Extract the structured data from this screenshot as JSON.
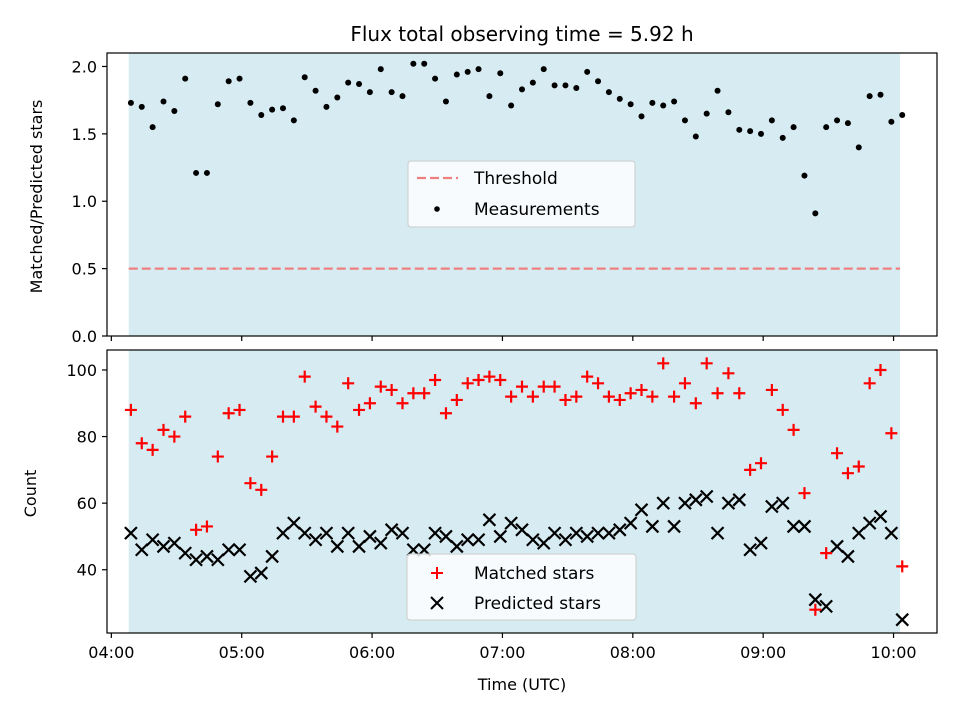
{
  "title": "Flux total observing time = 5.92 h",
  "colors": {
    "band": "#add8e6",
    "threshold": "#f08080",
    "measurement": "#000000",
    "matched": "#ff0000",
    "predicted": "#000000"
  },
  "chart_data": [
    {
      "type": "scatter",
      "panel": "top",
      "xlabel": "",
      "ylabel": "Matched/Predicted stars",
      "ylim": [
        0,
        2.1
      ],
      "yticks": [
        "0.0",
        "0.5",
        "1.0",
        "1.5",
        "2.0"
      ],
      "xlim": [
        "03:58",
        "10:20"
      ],
      "shaded_span": [
        "04:08",
        "10:03"
      ],
      "threshold": 0.5,
      "legend": {
        "placement": "center",
        "entries": [
          "Threshold",
          "Measurements"
        ]
      },
      "series": [
        {
          "name": "Measurements",
          "marker": "dot",
          "points": [
            [
              "04:09",
              1.73
            ],
            [
              "04:14",
              1.7
            ],
            [
              "04:19",
              1.55
            ],
            [
              "04:24",
              1.74
            ],
            [
              "04:29",
              1.67
            ],
            [
              "04:34",
              1.91
            ],
            [
              "04:39",
              1.21
            ],
            [
              "04:44",
              1.21
            ],
            [
              "04:49",
              1.72
            ],
            [
              "04:54",
              1.89
            ],
            [
              "04:59",
              1.91
            ],
            [
              "05:04",
              1.73
            ],
            [
              "05:09",
              1.64
            ],
            [
              "05:14",
              1.68
            ],
            [
              "05:19",
              1.69
            ],
            [
              "05:24",
              1.6
            ],
            [
              "05:29",
              1.92
            ],
            [
              "05:34",
              1.82
            ],
            [
              "05:39",
              1.7
            ],
            [
              "05:44",
              1.77
            ],
            [
              "05:49",
              1.88
            ],
            [
              "05:54",
              1.87
            ],
            [
              "05:59",
              1.81
            ],
            [
              "06:04",
              1.98
            ],
            [
              "06:09",
              1.81
            ],
            [
              "06:14",
              1.78
            ],
            [
              "06:19",
              2.02
            ],
            [
              "06:24",
              2.02
            ],
            [
              "06:29",
              1.91
            ],
            [
              "06:34",
              1.74
            ],
            [
              "06:39",
              1.94
            ],
            [
              "06:44",
              1.96
            ],
            [
              "06:49",
              1.98
            ],
            [
              "06:54",
              1.78
            ],
            [
              "06:59",
              1.95
            ],
            [
              "07:04",
              1.71
            ],
            [
              "07:09",
              1.83
            ],
            [
              "07:14",
              1.88
            ],
            [
              "07:19",
              1.98
            ],
            [
              "07:24",
              1.86
            ],
            [
              "07:29",
              1.86
            ],
            [
              "07:34",
              1.84
            ],
            [
              "07:39",
              1.96
            ],
            [
              "07:44",
              1.89
            ],
            [
              "07:49",
              1.81
            ],
            [
              "07:54",
              1.76
            ],
            [
              "07:59",
              1.72
            ],
            [
              "08:04",
              1.63
            ],
            [
              "08:09",
              1.73
            ],
            [
              "08:14",
              1.71
            ],
            [
              "08:19",
              1.74
            ],
            [
              "08:24",
              1.6
            ],
            [
              "08:29",
              1.48
            ],
            [
              "08:34",
              1.65
            ],
            [
              "08:39",
              1.82
            ],
            [
              "08:44",
              1.66
            ],
            [
              "08:49",
              1.53
            ],
            [
              "08:54",
              1.52
            ],
            [
              "08:59",
              1.5
            ],
            [
              "09:04",
              1.6
            ],
            [
              "09:09",
              1.47
            ],
            [
              "09:14",
              1.55
            ],
            [
              "09:19",
              1.19
            ],
            [
              "09:24",
              0.91
            ],
            [
              "09:29",
              1.55
            ],
            [
              "09:34",
              1.6
            ],
            [
              "09:39",
              1.58
            ],
            [
              "09:44",
              1.4
            ],
            [
              "09:49",
              1.78
            ],
            [
              "09:54",
              1.79
            ],
            [
              "09:59",
              1.59
            ],
            [
              "10:04",
              1.64
            ]
          ]
        }
      ]
    },
    {
      "type": "scatter",
      "panel": "bottom",
      "xlabel": "Time (UTC)",
      "ylabel": "Count",
      "ylim": [
        21,
        106
      ],
      "yticks": [
        "40",
        "60",
        "80",
        "100"
      ],
      "xlim": [
        "03:58",
        "10:20"
      ],
      "xticks": [
        "04:00",
        "05:00",
        "06:00",
        "07:00",
        "08:00",
        "09:00",
        "10:00"
      ],
      "shaded_span": [
        "04:08",
        "10:03"
      ],
      "legend": {
        "placement": "bottom-center",
        "entries": [
          "Matched stars",
          "Predicted stars"
        ]
      },
      "series": [
        {
          "name": "Matched stars",
          "marker": "plus",
          "points": [
            [
              "04:09",
              88
            ],
            [
              "04:14",
              78
            ],
            [
              "04:19",
              76
            ],
            [
              "04:24",
              82
            ],
            [
              "04:29",
              80
            ],
            [
              "04:34",
              86
            ],
            [
              "04:39",
              52
            ],
            [
              "04:44",
              53
            ],
            [
              "04:49",
              74
            ],
            [
              "04:54",
              87
            ],
            [
              "04:59",
              88
            ],
            [
              "05:04",
              66
            ],
            [
              "05:09",
              64
            ],
            [
              "05:14",
              74
            ],
            [
              "05:19",
              86
            ],
            [
              "05:24",
              86
            ],
            [
              "05:29",
              98
            ],
            [
              "05:34",
              89
            ],
            [
              "05:39",
              86
            ],
            [
              "05:44",
              83
            ],
            [
              "05:49",
              96
            ],
            [
              "05:54",
              88
            ],
            [
              "05:59",
              90
            ],
            [
              "06:04",
              95
            ],
            [
              "06:09",
              94
            ],
            [
              "06:14",
              90
            ],
            [
              "06:19",
              93
            ],
            [
              "06:24",
              93
            ],
            [
              "06:29",
              97
            ],
            [
              "06:34",
              87
            ],
            [
              "06:39",
              91
            ],
            [
              "06:44",
              96
            ],
            [
              "06:49",
              97
            ],
            [
              "06:54",
              98
            ],
            [
              "06:59",
              97
            ],
            [
              "07:04",
              92
            ],
            [
              "07:09",
              95
            ],
            [
              "07:14",
              92
            ],
            [
              "07:19",
              95
            ],
            [
              "07:24",
              95
            ],
            [
              "07:29",
              91
            ],
            [
              "07:34",
              92
            ],
            [
              "07:39",
              98
            ],
            [
              "07:44",
              96
            ],
            [
              "07:49",
              92
            ],
            [
              "07:54",
              91
            ],
            [
              "07:59",
              93
            ],
            [
              "08:04",
              94
            ],
            [
              "08:09",
              92
            ],
            [
              "08:14",
              102
            ],
            [
              "08:19",
              92
            ],
            [
              "08:24",
              96
            ],
            [
              "08:29",
              90
            ],
            [
              "08:34",
              102
            ],
            [
              "08:39",
              93
            ],
            [
              "08:44",
              99
            ],
            [
              "08:49",
              93
            ],
            [
              "08:54",
              70
            ],
            [
              "08:59",
              72
            ],
            [
              "09:04",
              94
            ],
            [
              "09:09",
              88
            ],
            [
              "09:14",
              82
            ],
            [
              "09:19",
              63
            ],
            [
              "09:24",
              28
            ],
            [
              "09:29",
              45
            ],
            [
              "09:34",
              75
            ],
            [
              "09:39",
              69
            ],
            [
              "09:44",
              71
            ],
            [
              "09:49",
              96
            ],
            [
              "09:54",
              100
            ],
            [
              "09:59",
              81
            ],
            [
              "10:04",
              41
            ]
          ]
        },
        {
          "name": "Predicted stars",
          "marker": "x",
          "points": [
            [
              "04:09",
              51
            ],
            [
              "04:14",
              46
            ],
            [
              "04:19",
              49
            ],
            [
              "04:24",
              47
            ],
            [
              "04:29",
              48
            ],
            [
              "04:34",
              45
            ],
            [
              "04:39",
              43
            ],
            [
              "04:44",
              44
            ],
            [
              "04:49",
              43
            ],
            [
              "04:54",
              46
            ],
            [
              "04:59",
              46
            ],
            [
              "05:04",
              38
            ],
            [
              "05:09",
              39
            ],
            [
              "05:14",
              44
            ],
            [
              "05:19",
              51
            ],
            [
              "05:24",
              54
            ],
            [
              "05:29",
              51
            ],
            [
              "05:34",
              49
            ],
            [
              "05:39",
              51
            ],
            [
              "05:44",
              47
            ],
            [
              "05:49",
              51
            ],
            [
              "05:54",
              47
            ],
            [
              "05:59",
              50
            ],
            [
              "06:04",
              48
            ],
            [
              "06:09",
              52
            ],
            [
              "06:14",
              51
            ],
            [
              "06:19",
              46
            ],
            [
              "06:24",
              46
            ],
            [
              "06:29",
              51
            ],
            [
              "06:34",
              50
            ],
            [
              "06:39",
              47
            ],
            [
              "06:44",
              49
            ],
            [
              "06:49",
              49
            ],
            [
              "06:54",
              55
            ],
            [
              "06:59",
              50
            ],
            [
              "07:04",
              54
            ],
            [
              "07:09",
              52
            ],
            [
              "07:14",
              49
            ],
            [
              "07:19",
              48
            ],
            [
              "07:24",
              51
            ],
            [
              "07:29",
              49
            ],
            [
              "07:34",
              51
            ],
            [
              "07:39",
              50
            ],
            [
              "07:44",
              51
            ],
            [
              "07:49",
              51
            ],
            [
              "07:54",
              52
            ],
            [
              "07:59",
              54
            ],
            [
              "08:04",
              58
            ],
            [
              "08:09",
              53
            ],
            [
              "08:14",
              60
            ],
            [
              "08:19",
              53
            ],
            [
              "08:24",
              60
            ],
            [
              "08:29",
              61
            ],
            [
              "08:34",
              62
            ],
            [
              "08:39",
              51
            ],
            [
              "08:44",
              60
            ],
            [
              "08:49",
              61
            ],
            [
              "08:54",
              46
            ],
            [
              "08:59",
              48
            ],
            [
              "09:04",
              59
            ],
            [
              "09:09",
              60
            ],
            [
              "09:14",
              53
            ],
            [
              "09:19",
              53
            ],
            [
              "09:24",
              31
            ],
            [
              "09:29",
              29
            ],
            [
              "09:34",
              47
            ],
            [
              "09:39",
              44
            ],
            [
              "09:44",
              51
            ],
            [
              "09:49",
              54
            ],
            [
              "09:54",
              56
            ],
            [
              "09:59",
              51
            ],
            [
              "10:04",
              25
            ]
          ]
        }
      ]
    }
  ]
}
